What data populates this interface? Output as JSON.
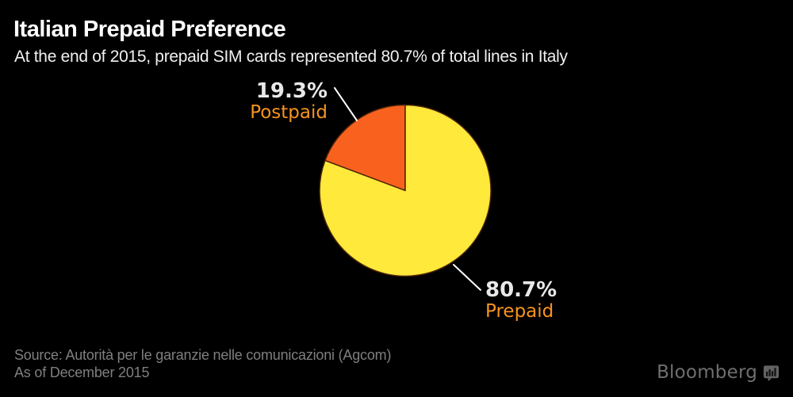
{
  "header": {
    "title": "Italian Prepaid Preference",
    "subtitle": "At the end of 2015, prepaid SIM cards represented 80.7% of total lines in Italy"
  },
  "chart_data": {
    "type": "pie",
    "title": "Italian Prepaid Preference",
    "start_angle_deg": -90,
    "direction": "counterclockwise",
    "slices": [
      {
        "label": "Postpaid",
        "value": 19.3,
        "pct_label": "19.3%",
        "color": "#f9611f"
      },
      {
        "label": "Prepaid",
        "value": 80.7,
        "pct_label": "80.7%",
        "color": "#ffe93b"
      }
    ],
    "colors": {
      "pct_label": "#e8e8e8",
      "name_label": "#f7941e",
      "callout_line": "#ffffff",
      "slice_divider": "#4a2408",
      "background": "#000000"
    }
  },
  "footer": {
    "source_line1": "Source: Autorità per le garanzie nelle comunicazioni (Agcom)",
    "source_line2": "As of December 2015",
    "brand": "Bloomberg",
    "brand_icon": "bar-chart-bubble-icon"
  }
}
